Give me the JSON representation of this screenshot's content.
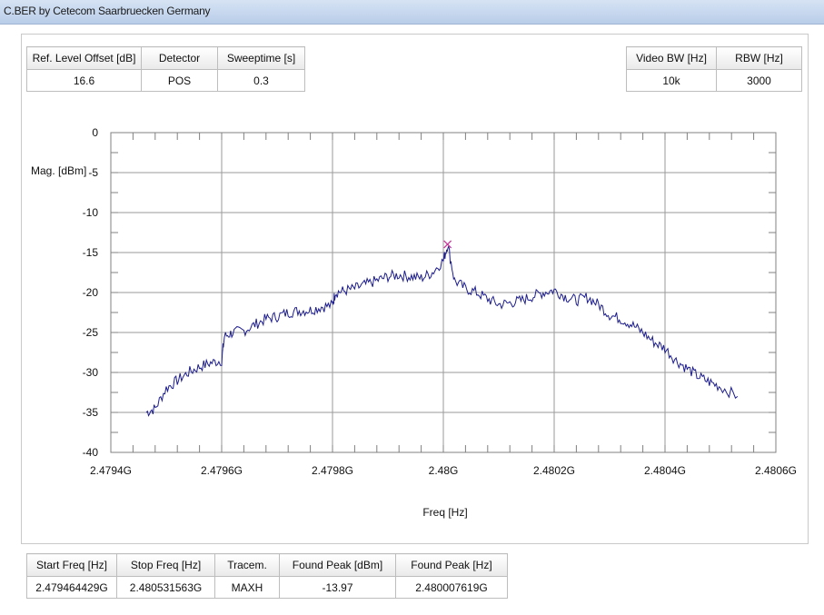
{
  "window": {
    "title": "C.BER by Cetecom Saarbruecken Germany"
  },
  "top_left_params": {
    "headers": [
      "Ref. Level Offset [dB]",
      "Detector",
      "Sweeptime [s]"
    ],
    "values": [
      "16.6",
      "POS",
      "0.3"
    ]
  },
  "top_right_params": {
    "headers": [
      "Video BW [Hz]",
      "RBW [Hz]"
    ],
    "values": [
      "10k",
      "3000"
    ]
  },
  "bottom_params": {
    "headers": [
      "Start Freq [Hz]",
      "Stop Freq [Hz]",
      "Tracem.",
      "Found Peak [dBm]",
      "Found Peak [Hz]"
    ],
    "values": [
      "2.479464429G",
      "2.480531563G",
      "MAXH",
      "-13.97",
      "2.480007619G"
    ]
  },
  "chart_data": {
    "type": "line",
    "xlabel": "Freq [Hz]",
    "ylabel": "Mag. [dBm]",
    "xlim": [
      2.4794,
      2.4806
    ],
    "ylim": [
      -40,
      0
    ],
    "x_tick_labels": [
      "2.4794G",
      "2.4796G",
      "2.4798G",
      "2.48G",
      "2.4802G",
      "2.4804G",
      "2.4806G"
    ],
    "y_tick_labels": [
      "0",
      "-5",
      "-10",
      "-15",
      "-20",
      "-25",
      "-30",
      "-35",
      "-40"
    ],
    "grid": true,
    "line_color": "#1c1c8c",
    "marker_color": "#cc3399",
    "peak_marker": {
      "x": 2.480007619,
      "y": -13.97
    },
    "series": [
      {
        "values_x": [
          2.479464,
          2.47948,
          2.4795,
          2.47952,
          2.47954,
          2.47956,
          2.47958,
          2.4796,
          2.479605,
          2.47962,
          2.47964,
          2.47966,
          2.47968,
          2.4797,
          2.47972,
          2.47974,
          2.47976,
          2.47978,
          2.4798,
          2.479805,
          2.47982,
          2.47984,
          2.47986,
          2.47988,
          2.4799,
          2.47992,
          2.47994,
          2.47996,
          2.47998,
          2.48,
          2.480008,
          2.48002,
          2.48004,
          2.48006,
          2.48008,
          2.4801,
          2.48012,
          2.48014,
          2.48016,
          2.48018,
          2.4802,
          2.48022,
          2.48024,
          2.48026,
          2.48028,
          2.4803,
          2.48032,
          2.48034,
          2.48036,
          2.48038,
          2.4804,
          2.48042,
          2.48044,
          2.48046,
          2.48048,
          2.4805,
          2.480531
        ],
        "values_y": [
          -35,
          -34.5,
          -32,
          -31,
          -30,
          -29.3,
          -28.8,
          -28.5,
          -25.5,
          -25,
          -24.8,
          -24,
          -23.3,
          -23,
          -22.5,
          -22.3,
          -22.2,
          -21.8,
          -21.6,
          -20,
          -19.8,
          -19.5,
          -19,
          -18.5,
          -18,
          -17.8,
          -18,
          -18.2,
          -17.5,
          -16,
          -13.97,
          -18.5,
          -19.5,
          -20,
          -20.8,
          -21.5,
          -21.3,
          -21,
          -20.5,
          -20,
          -19.7,
          -20.5,
          -21,
          -20.6,
          -21.5,
          -22.8,
          -23.3,
          -24,
          -25,
          -26.2,
          -27,
          -28.5,
          -29.5,
          -30.5,
          -31.2,
          -31.8,
          -33
        ]
      }
    ]
  }
}
